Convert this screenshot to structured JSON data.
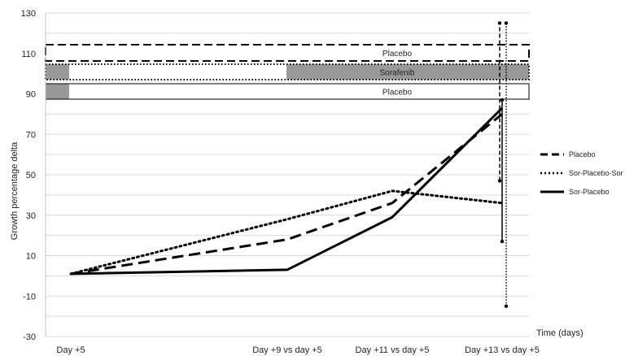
{
  "chart_data": {
    "type": "line",
    "ylabel": "Growth percentage delta",
    "xlabel": "Time (days)",
    "ylim": [
      -30,
      130
    ],
    "yticks": [
      -30,
      -10,
      10,
      30,
      50,
      70,
      90,
      110,
      130
    ],
    "categories": [
      "Day +5",
      "Day +9 vs day +5",
      "Day +11 vs day +5",
      "Day +13 vs day +5"
    ],
    "grid": true,
    "legend_position": "right",
    "series": [
      {
        "name": "Placebo",
        "style": "dashed",
        "points": [
          {
            "x": "Day +5",
            "y": 1
          },
          {
            "x": "Day +9 vs day +5",
            "y": 18
          },
          {
            "x": "Day +11 vs day +5",
            "y": 36
          },
          {
            "x": "Day +13 vs day +5",
            "y": 80
          }
        ],
        "error_bar": {
          "at": "Day +13 vs day +5",
          "low": 47,
          "high": 125
        }
      },
      {
        "name": "Sor-Placebo-Sor",
        "style": "dotted",
        "points": [
          {
            "x": "Day +5",
            "y": 1
          },
          {
            "x": "Day +9 vs day +5",
            "y": 28
          },
          {
            "x": "Day +11 vs day +5",
            "y": 42
          },
          {
            "x": "Day +13 vs day +5",
            "y": 36
          }
        ],
        "error_bar": {
          "at": "Day +13 vs day +5",
          "low": -15,
          "high": 125
        }
      },
      {
        "name": "Sor-Placebo",
        "style": "solid",
        "points": [
          {
            "x": "Day +5",
            "y": 1
          },
          {
            "x": "Day +9 vs day +5",
            "y": 3
          },
          {
            "x": "Day +11 vs day +5",
            "y": 29
          },
          {
            "x": "Day +13 vs day +5",
            "y": 83
          }
        ],
        "error_bar": {
          "at": "Day +13 vs day +5",
          "low": 17,
          "high": 87
        }
      }
    ],
    "treatment_bands": [
      {
        "label": "Placebo",
        "border": "dashed",
        "shaded_segments": []
      },
      {
        "label": "Sorafenib",
        "border": "dotted",
        "shaded_segments": [
          "start",
          "main"
        ]
      },
      {
        "label": "Placebo",
        "border": "solid",
        "shaded_segments": [
          "start"
        ]
      }
    ],
    "colors": {
      "line": "#000000",
      "shade": "#999999",
      "grid": "#d9d9d9"
    }
  }
}
